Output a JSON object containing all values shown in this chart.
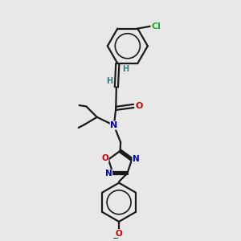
{
  "background_color": "#e8e8e8",
  "bond_color": "#1a1a1a",
  "N_color": "#0000cc",
  "O_color": "#cc0000",
  "Cl_color": "#22aa22",
  "H_color": "#3a7a7a",
  "figsize": [
    3.0,
    3.0
  ],
  "dpi": 100,
  "xlim": [
    0,
    10
  ],
  "ylim": [
    0,
    10
  ]
}
